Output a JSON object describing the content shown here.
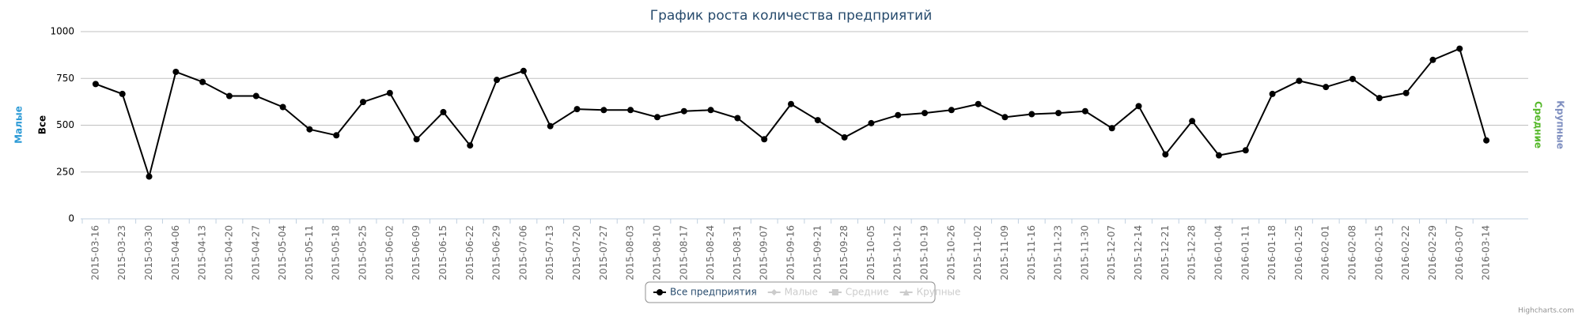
{
  "chart_data": {
    "type": "line",
    "title": "График роста количества предприятий",
    "categories": [
      "2015-03-16",
      "2015-03-23",
      "2015-03-30",
      "2015-04-06",
      "2015-04-13",
      "2015-04-20",
      "2015-04-27",
      "2015-05-04",
      "2015-05-11",
      "2015-05-18",
      "2015-05-25",
      "2015-06-02",
      "2015-06-09",
      "2015-06-15",
      "2015-06-22",
      "2015-06-29",
      "2015-07-06",
      "2015-07-13",
      "2015-07-20",
      "2015-07-27",
      "2015-08-03",
      "2015-08-10",
      "2015-08-17",
      "2015-08-24",
      "2015-08-31",
      "2015-09-07",
      "2015-09-16",
      "2015-09-21",
      "2015-09-28",
      "2015-10-05",
      "2015-10-12",
      "2015-10-19",
      "2015-10-26",
      "2015-11-02",
      "2015-11-09",
      "2015-11-16",
      "2015-11-23",
      "2015-11-30",
      "2015-12-07",
      "2015-12-14",
      "2015-12-21",
      "2015-12-28",
      "2016-01-04",
      "2016-01-11",
      "2016-01-18",
      "2016-01-25",
      "2016-02-01",
      "2016-02-08",
      "2016-02-15",
      "2016-02-22",
      "2016-02-29",
      "2016-03-07",
      "2016-03-14"
    ],
    "series": [
      {
        "name": "Все предприятия",
        "color": "#000000",
        "visible": true,
        "values": [
          720,
          667,
          226,
          785,
          731,
          656,
          656,
          597,
          478,
          446,
          624,
          672,
          425,
          570,
          392,
          742,
          790,
          495,
          586,
          581,
          581,
          543,
          575,
          581,
          538,
          425,
          613,
          527,
          435,
          511,
          554,
          565,
          581,
          613,
          543,
          559,
          565,
          575,
          484,
          602,
          344,
          522,
          339,
          366,
          667,
          737,
          704,
          747,
          645,
          672,
          849,
          909,
          419
        ]
      },
      {
        "name": "Малые",
        "color": "#2b9ad6",
        "visible": false
      },
      {
        "name": "Средние",
        "color": "#55b82a",
        "visible": false
      },
      {
        "name": "Крупные",
        "color": "#7f8fc0",
        "visible": false
      }
    ],
    "axis_titles": [
      {
        "text": "Малые",
        "color": "#2b9ad6",
        "side": "left"
      },
      {
        "text": "Все",
        "color": "#000000",
        "side": "left"
      },
      {
        "text": "Средние",
        "color": "#55b82a",
        "side": "right"
      },
      {
        "text": "Крупные",
        "color": "#7f8fc0",
        "side": "right"
      }
    ],
    "ylim": [
      0,
      1000
    ],
    "yticks": [
      0,
      250,
      500,
      750,
      1000
    ],
    "grid": true,
    "legend": "bottom",
    "credits": "Highcharts.com"
  }
}
